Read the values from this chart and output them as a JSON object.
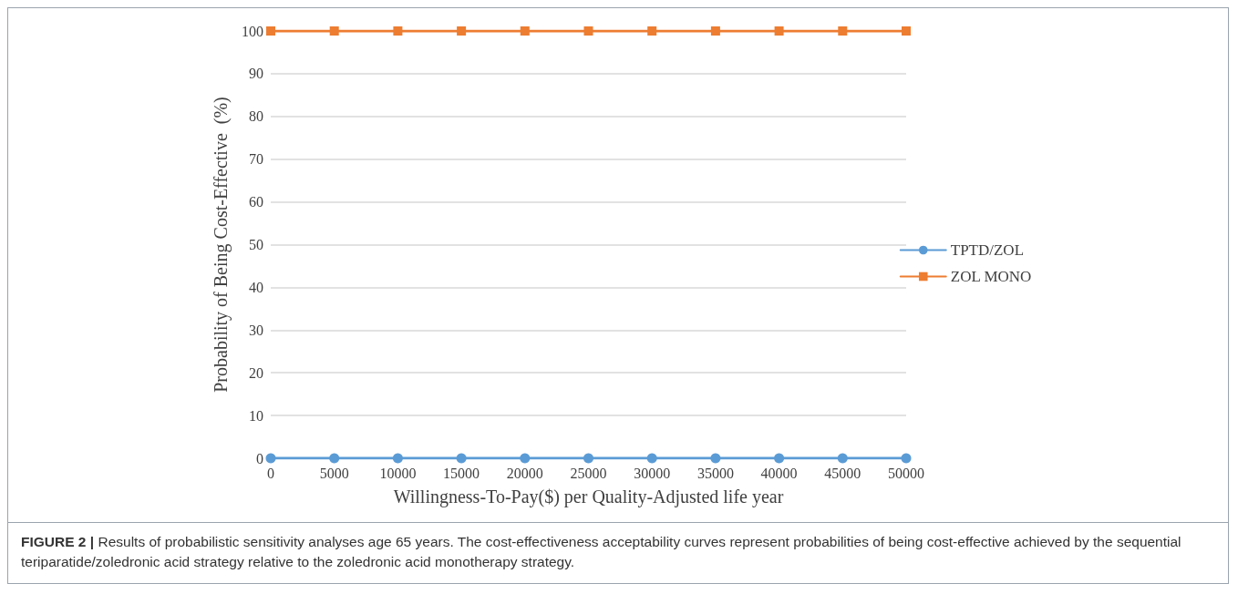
{
  "chart_data": {
    "type": "line",
    "xlabel": "Willingness-To-Pay($) per Quality-Adjusted life year",
    "ylabel": "Probability of Being Cost-Effective  (%)",
    "x": [
      0,
      5000,
      10000,
      15000,
      20000,
      25000,
      30000,
      35000,
      40000,
      45000,
      50000
    ],
    "series": [
      {
        "name": "TPTD/ZOL",
        "color": "#5b9bd5",
        "marker": "circle",
        "values": [
          0,
          0,
          0,
          0,
          0,
          0,
          0,
          0,
          0,
          0,
          0
        ]
      },
      {
        "name": "ZOL MONO",
        "color": "#ed7d31",
        "marker": "square",
        "values": [
          100,
          100,
          100,
          100,
          100,
          100,
          100,
          100,
          100,
          100,
          100
        ]
      }
    ],
    "xlim": [
      0,
      50000
    ],
    "xticks": [
      0,
      5000,
      10000,
      15000,
      20000,
      25000,
      30000,
      35000,
      40000,
      45000,
      50000
    ],
    "ylim": [
      0,
      100
    ],
    "yticks": [
      0,
      10,
      20,
      30,
      40,
      50,
      60,
      70,
      80,
      90,
      100
    ],
    "grid": "y",
    "legend": "right",
    "line_style": "solid",
    "annotations": [
      "FIGURE 2 | Results of probabilistic sensitivity analyses age 65 years. The cost-effectiveness acceptability curves represent probabilities of being cost-effective achieved by the sequential teriparatide/zoledronic acid strategy relative to the zoledronic acid monotherapy strategy."
    ]
  }
}
